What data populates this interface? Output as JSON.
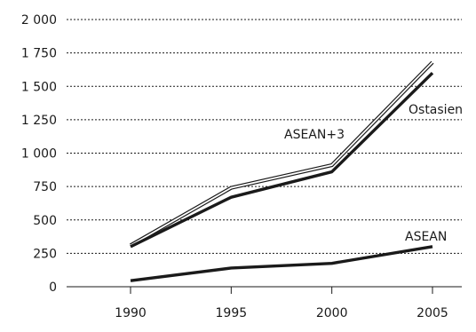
{
  "chart_data": {
    "type": "line",
    "x": [
      1990,
      1995,
      2000,
      2005
    ],
    "x_tick_labels": [
      "1990",
      "1995",
      "2000",
      "2005"
    ],
    "y_tick_values": [
      0,
      250,
      500,
      750,
      1000,
      1250,
      1500,
      1750,
      2000
    ],
    "y_tick_labels": [
      "0",
      "250",
      "500",
      "750",
      "1 000",
      "1 250",
      "1 500",
      "1 750",
      "2 000"
    ],
    "ylim": [
      0,
      2000
    ],
    "grid": true,
    "series": [
      {
        "name": "ASEAN+3",
        "values": [
          310,
          740,
          910,
          1680
        ],
        "color": "#1a1a1a",
        "style": "thin-outline"
      },
      {
        "name": "Ostasien",
        "values": [
          300,
          670,
          860,
          1600
        ],
        "color": "#1a1a1a",
        "style": "thick"
      },
      {
        "name": "ASEAN",
        "values": [
          45,
          140,
          175,
          300
        ],
        "color": "#1a1a1a",
        "style": "thick"
      }
    ]
  }
}
